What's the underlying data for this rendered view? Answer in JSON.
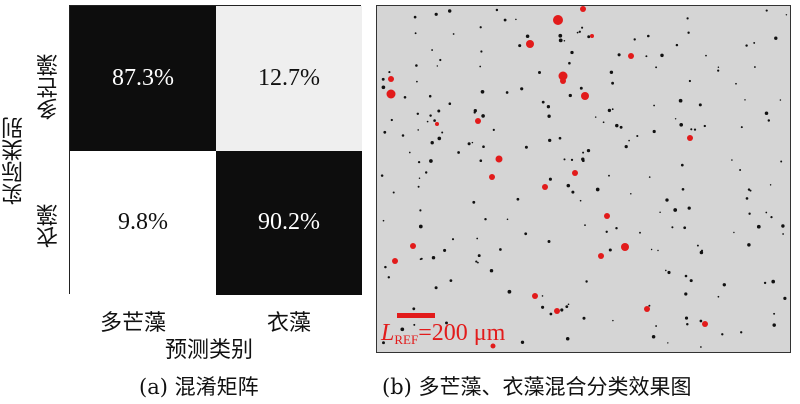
{
  "confusion_matrix": {
    "cells": [
      [
        "87.3%",
        "12.7%"
      ],
      [
        "9.8%",
        "90.2%"
      ]
    ],
    "x_ticks": [
      "多芒藻",
      "衣藻"
    ],
    "y_ticks": [
      "多芒藻",
      "衣藻"
    ],
    "x_label": "预测类别",
    "y_label": "实际类别",
    "caption": "(a) 混淆矩阵"
  },
  "micrograph": {
    "scale_symbol": "L",
    "scale_subscript": "REF",
    "scale_value": "=200 μm",
    "caption": "(b) 多芒藻、衣藻混合分类效果图",
    "colors": {
      "background": "#d5d5d5",
      "class_red": "#e21b1b",
      "class_black": "#111111"
    }
  }
}
